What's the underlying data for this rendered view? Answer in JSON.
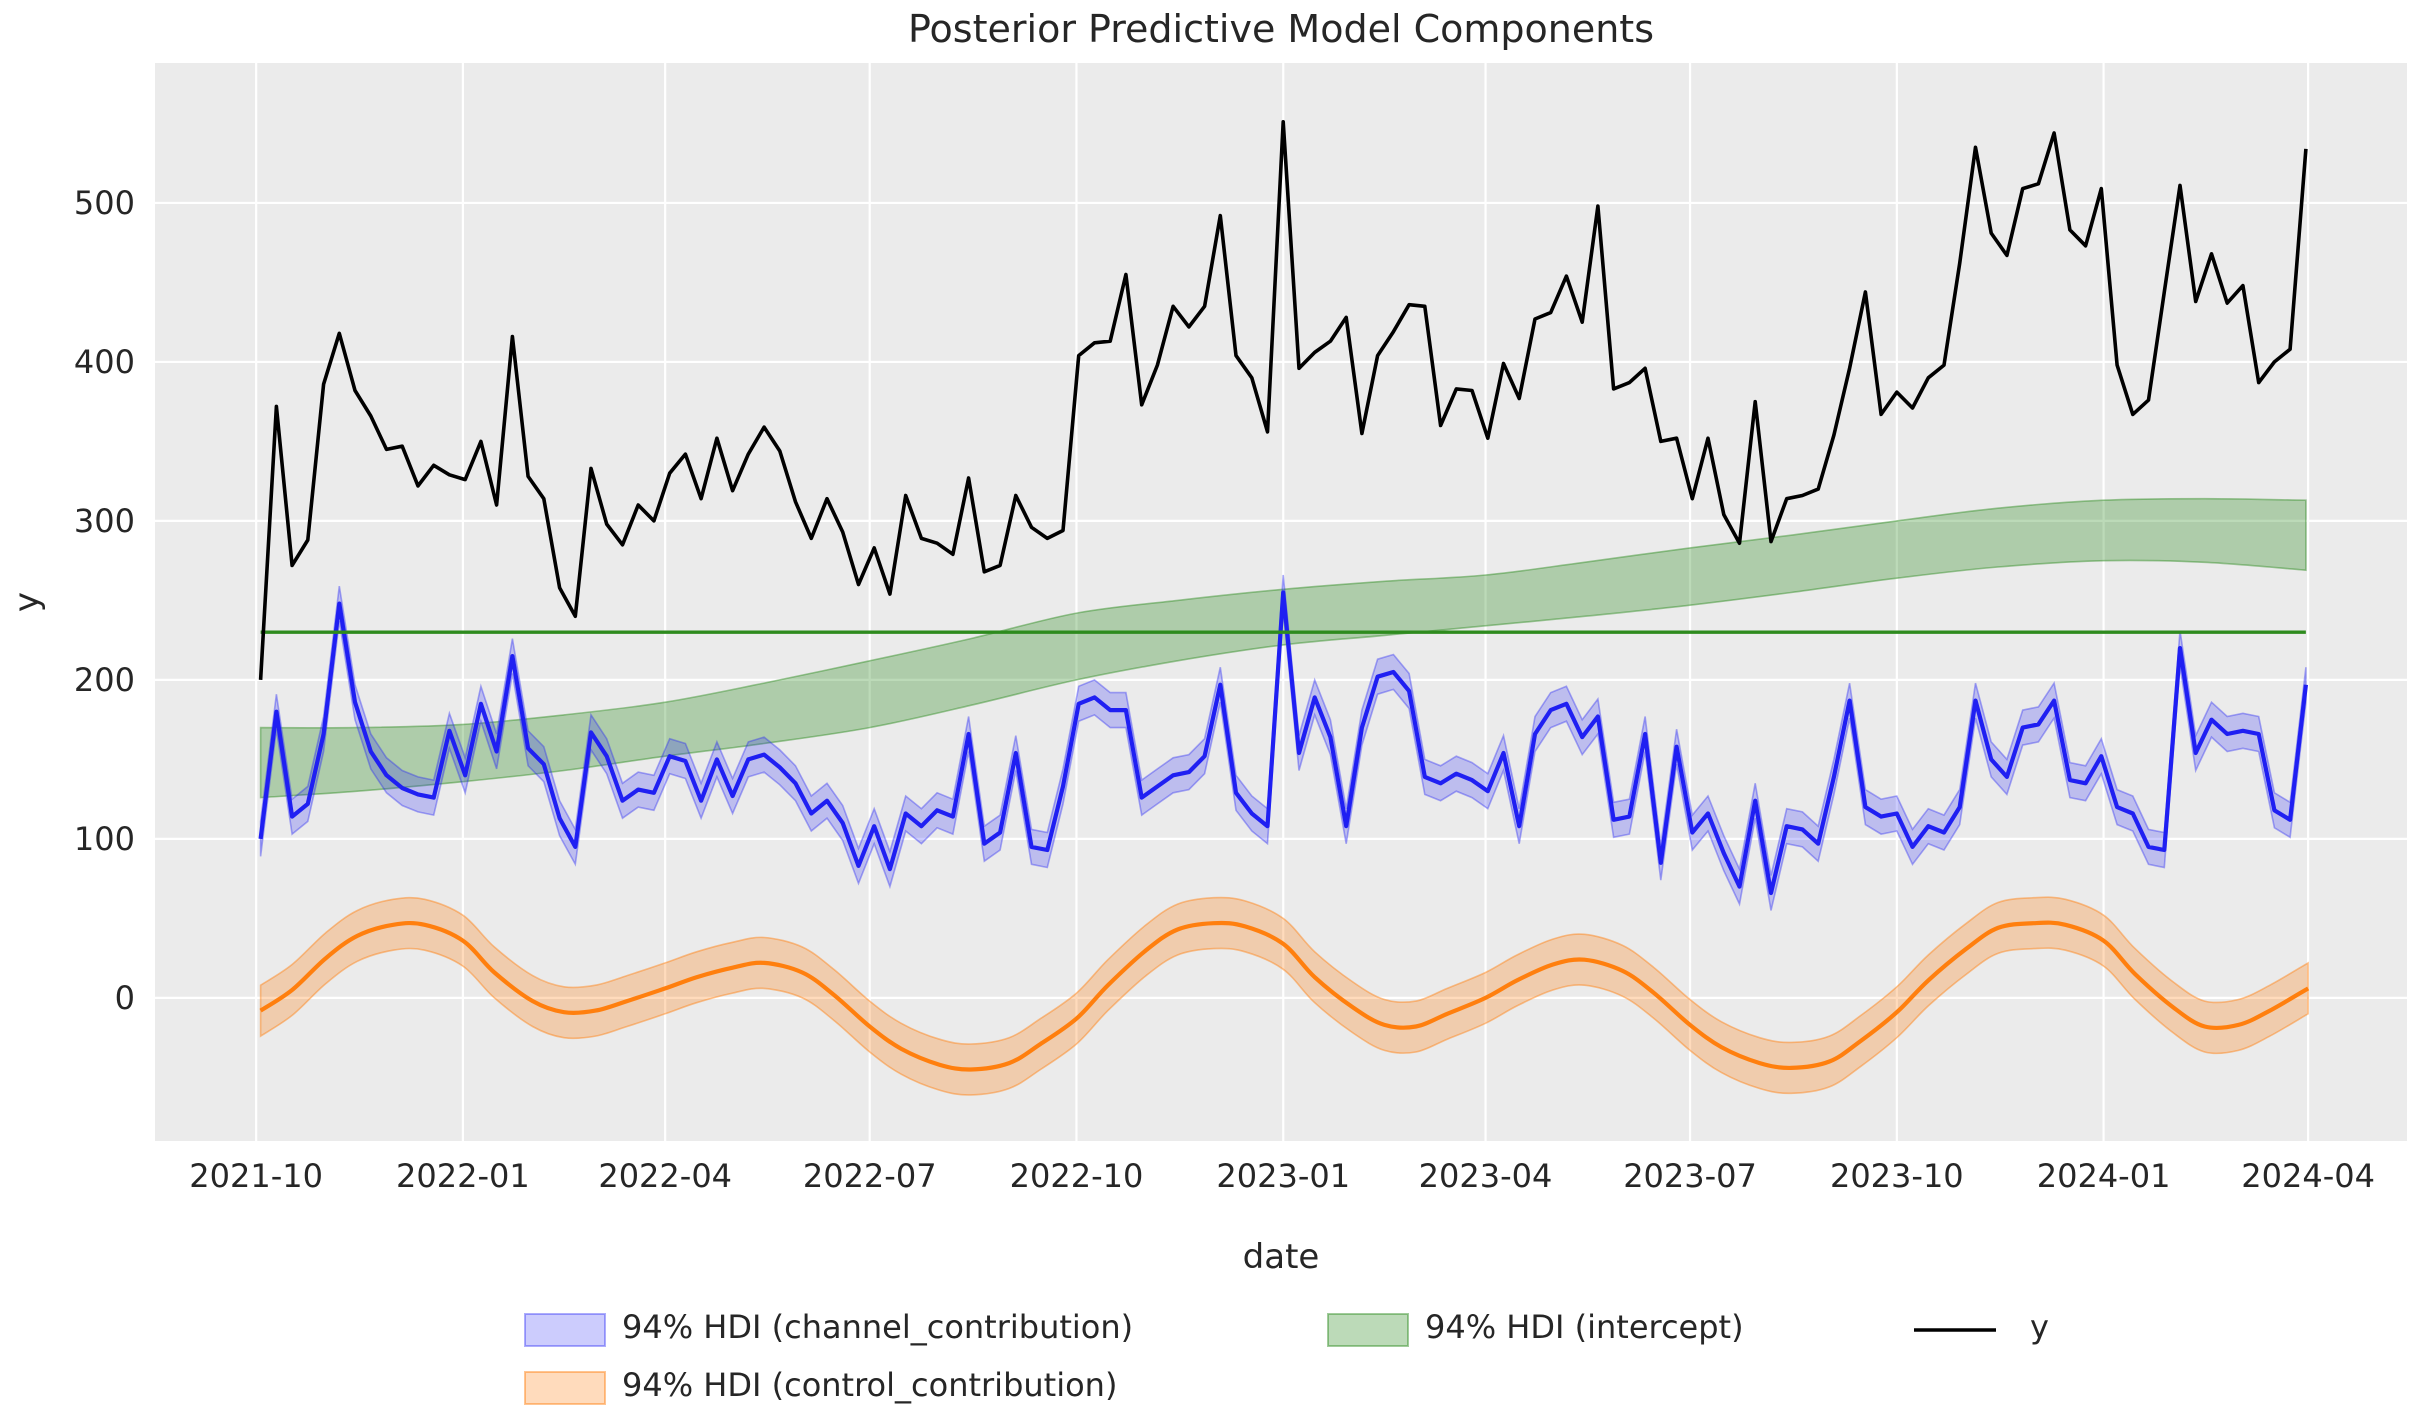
{
  "chart_data": {
    "type": "line",
    "title": "Posterior Predictive Model Components",
    "xlabel": "date",
    "ylabel": "y",
    "plot_bg": "#EBEBEB",
    "grid_color": "#FFFFFF",
    "text_color": "#262626",
    "ylim": [
      -90,
      588
    ],
    "y_ticks": [
      0,
      100,
      200,
      300,
      400,
      500
    ],
    "x_ticks": [
      {
        "date": "2021-10-01",
        "label": "2021-10"
      },
      {
        "date": "2022-01-01",
        "label": "2022-01"
      },
      {
        "date": "2022-04-01",
        "label": "2022-04"
      },
      {
        "date": "2022-07-01",
        "label": "2022-07"
      },
      {
        "date": "2022-10-01",
        "label": "2022-10"
      },
      {
        "date": "2023-01-01",
        "label": "2023-01"
      },
      {
        "date": "2023-04-01",
        "label": "2023-04"
      },
      {
        "date": "2023-07-01",
        "label": "2023-07"
      },
      {
        "date": "2023-10-01",
        "label": "2023-10"
      },
      {
        "date": "2024-01-01",
        "label": "2024-01"
      },
      {
        "date": "2024-04-01",
        "label": "2024-04"
      }
    ],
    "xlim_dates": [
      "2021-08-17",
      "2024-05-15"
    ],
    "x_start_date": "2021-10-03",
    "x_freq_days": 7,
    "series": [
      {
        "name": "y",
        "color": "#000000",
        "line_width": 3.6,
        "values": [
          200,
          372,
          272,
          288,
          386,
          418,
          382,
          366,
          345,
          347,
          322,
          335,
          329,
          326,
          350,
          310,
          416,
          328,
          314,
          258,
          240,
          333,
          298,
          285,
          310,
          300,
          330,
          342,
          314,
          352,
          319,
          342,
          359,
          344,
          312,
          289,
          314,
          293,
          260,
          283,
          254,
          316,
          289,
          286,
          279,
          327,
          268,
          272,
          316,
          296,
          289,
          294,
          404,
          412,
          413,
          455,
          373,
          398,
          435,
          422,
          435,
          492,
          404,
          390,
          356,
          551,
          396,
          406,
          413,
          428,
          355,
          404,
          419,
          436,
          435,
          360,
          383,
          382,
          352,
          399,
          377,
          427,
          431,
          454,
          425,
          498,
          383,
          387,
          396,
          350,
          352,
          314,
          352,
          304,
          286,
          375,
          287,
          314,
          316,
          320,
          354,
          396,
          444,
          367,
          381,
          371,
          390,
          398,
          462,
          535,
          481,
          467,
          509,
          512,
          544,
          483,
          473,
          509,
          398,
          367,
          376,
          444,
          511,
          438,
          468,
          437,
          448,
          387,
          400,
          408,
          534
        ]
      },
      {
        "name": "channel_contribution_mean",
        "color": "#1F1FF2",
        "line_width": 4.2,
        "hdi_half_width": 11,
        "band_fill": "rgba(40,40,245,0.24)",
        "band_edge": "rgba(40,40,245,0.38)",
        "values": [
          100,
          180,
          114,
          122,
          166,
          248,
          186,
          155,
          140,
          132,
          128,
          126,
          168,
          140,
          185,
          155,
          215,
          157,
          147,
          113,
          95,
          167,
          152,
          124,
          131,
          129,
          152,
          149,
          124,
          150,
          127,
          150,
          153,
          145,
          135,
          116,
          124,
          110,
          83,
          108,
          81,
          116,
          108,
          118,
          114,
          166,
          97,
          104,
          154,
          95,
          93,
          133,
          185,
          189,
          181,
          181,
          126,
          133,
          140,
          142,
          152,
          197,
          129,
          116,
          108,
          255,
          154,
          189,
          164,
          108,
          170,
          202,
          205,
          193,
          139,
          135,
          141,
          137,
          130,
          154,
          108,
          166,
          181,
          185,
          164,
          177,
          112,
          114,
          166,
          85,
          158,
          104,
          116,
          91,
          70,
          124,
          66,
          108,
          106,
          97,
          139,
          187,
          120,
          114,
          116,
          95,
          108,
          104,
          120,
          187,
          150,
          139,
          170,
          172,
          187,
          137,
          135,
          152,
          120,
          116,
          95,
          93,
          220,
          154,
          175,
          166,
          168,
          166,
          118,
          112,
          197
        ]
      }
    ],
    "intercept_line": {
      "name": "intercept_mean",
      "value": 230,
      "color": "#2E8B1E",
      "line_width": 3.4
    },
    "intercept_band": {
      "name": "94% HDI (intercept)",
      "band_fill": "rgba(46,139,34,0.32)",
      "band_edge": "rgba(46,139,34,0.45)",
      "keypoints": [
        {
          "date": "2021-10-03",
          "lo": 126,
          "hi": 170
        },
        {
          "date": "2021-11-15",
          "lo": 130,
          "hi": 170
        },
        {
          "date": "2022-01-01",
          "lo": 136,
          "hi": 172
        },
        {
          "date": "2022-02-15",
          "lo": 143,
          "hi": 178
        },
        {
          "date": "2022-04-01",
          "lo": 152,
          "hi": 186
        },
        {
          "date": "2022-05-15",
          "lo": 160,
          "hi": 198
        },
        {
          "date": "2022-07-01",
          "lo": 170,
          "hi": 212
        },
        {
          "date": "2022-08-15",
          "lo": 184,
          "hi": 226
        },
        {
          "date": "2022-10-01",
          "lo": 200,
          "hi": 242
        },
        {
          "date": "2022-11-15",
          "lo": 212,
          "hi": 250
        },
        {
          "date": "2023-01-01",
          "lo": 222,
          "hi": 257
        },
        {
          "date": "2023-02-15",
          "lo": 228,
          "hi": 262
        },
        {
          "date": "2023-04-01",
          "lo": 234,
          "hi": 266
        },
        {
          "date": "2023-05-15",
          "lo": 240,
          "hi": 274
        },
        {
          "date": "2023-07-01",
          "lo": 247,
          "hi": 283
        },
        {
          "date": "2023-08-15",
          "lo": 255,
          "hi": 291
        },
        {
          "date": "2023-10-01",
          "lo": 264,
          "hi": 300
        },
        {
          "date": "2023-11-15",
          "lo": 271,
          "hi": 308
        },
        {
          "date": "2024-01-01",
          "lo": 275,
          "hi": 313
        },
        {
          "date": "2024-02-15",
          "lo": 274,
          "hi": 314
        },
        {
          "date": "2024-03-31",
          "lo": 269,
          "hi": 313
        }
      ]
    },
    "control_band": {
      "name": "94% HDI (control_contribution)",
      "color": "#FF7F0E",
      "line_width": 4.2,
      "hdi_half_width": 16,
      "band_fill": "rgba(255,127,14,0.28)",
      "band_edge": "rgba(255,127,14,0.45)",
      "keypoints": [
        {
          "date": "2021-10-03",
          "mid": -8
        },
        {
          "date": "2021-10-17",
          "mid": 5
        },
        {
          "date": "2021-11-01",
          "mid": 25
        },
        {
          "date": "2021-11-15",
          "mid": 39
        },
        {
          "date": "2021-12-01",
          "mid": 46
        },
        {
          "date": "2021-12-15",
          "mid": 46
        },
        {
          "date": "2022-01-01",
          "mid": 36
        },
        {
          "date": "2022-01-15",
          "mid": 16
        },
        {
          "date": "2022-02-01",
          "mid": -2
        },
        {
          "date": "2022-02-15",
          "mid": -9
        },
        {
          "date": "2022-03-01",
          "mid": -8
        },
        {
          "date": "2022-03-15",
          "mid": -2
        },
        {
          "date": "2022-04-01",
          "mid": 6
        },
        {
          "date": "2022-04-15",
          "mid": 13
        },
        {
          "date": "2022-05-01",
          "mid": 19
        },
        {
          "date": "2022-05-15",
          "mid": 22
        },
        {
          "date": "2022-06-01",
          "mid": 16
        },
        {
          "date": "2022-06-15",
          "mid": 2
        },
        {
          "date": "2022-07-01",
          "mid": -18
        },
        {
          "date": "2022-07-15",
          "mid": -32
        },
        {
          "date": "2022-08-01",
          "mid": -42
        },
        {
          "date": "2022-08-15",
          "mid": -45
        },
        {
          "date": "2022-09-01",
          "mid": -41
        },
        {
          "date": "2022-09-15",
          "mid": -29
        },
        {
          "date": "2022-10-01",
          "mid": -13
        },
        {
          "date": "2022-10-15",
          "mid": 8
        },
        {
          "date": "2022-11-01",
          "mid": 30
        },
        {
          "date": "2022-11-15",
          "mid": 43
        },
        {
          "date": "2022-12-01",
          "mid": 47
        },
        {
          "date": "2022-12-15",
          "mid": 45
        },
        {
          "date": "2023-01-01",
          "mid": 34
        },
        {
          "date": "2023-01-15",
          "mid": 13
        },
        {
          "date": "2023-02-01",
          "mid": -6
        },
        {
          "date": "2023-02-15",
          "mid": -17
        },
        {
          "date": "2023-03-01",
          "mid": -18
        },
        {
          "date": "2023-03-15",
          "mid": -10
        },
        {
          "date": "2023-04-01",
          "mid": 0
        },
        {
          "date": "2023-04-15",
          "mid": 11
        },
        {
          "date": "2023-05-01",
          "mid": 21
        },
        {
          "date": "2023-05-15",
          "mid": 24
        },
        {
          "date": "2023-06-01",
          "mid": 17
        },
        {
          "date": "2023-06-15",
          "mid": 3
        },
        {
          "date": "2023-07-01",
          "mid": -17
        },
        {
          "date": "2023-07-15",
          "mid": -31
        },
        {
          "date": "2023-08-01",
          "mid": -41
        },
        {
          "date": "2023-08-15",
          "mid": -44
        },
        {
          "date": "2023-09-01",
          "mid": -40
        },
        {
          "date": "2023-09-15",
          "mid": -27
        },
        {
          "date": "2023-10-01",
          "mid": -9
        },
        {
          "date": "2023-10-15",
          "mid": 11
        },
        {
          "date": "2023-11-01",
          "mid": 31
        },
        {
          "date": "2023-11-15",
          "mid": 44
        },
        {
          "date": "2023-12-01",
          "mid": 47
        },
        {
          "date": "2023-12-15",
          "mid": 46
        },
        {
          "date": "2024-01-01",
          "mid": 36
        },
        {
          "date": "2024-01-15",
          "mid": 15
        },
        {
          "date": "2024-02-01",
          "mid": -6
        },
        {
          "date": "2024-02-15",
          "mid": -18
        },
        {
          "date": "2024-03-01",
          "mid": -17
        },
        {
          "date": "2024-03-15",
          "mid": -8
        },
        {
          "date": "2024-04-01",
          "mid": 6
        }
      ]
    },
    "legend": {
      "entries": [
        {
          "label": "94% HDI (channel_contribution)",
          "swatch": "patch",
          "ref": "channel"
        },
        {
          "label": "94% HDI (control_contribution)",
          "swatch": "patch",
          "ref": "control"
        },
        {
          "label": "94% HDI (intercept)",
          "swatch": "patch",
          "ref": "intercept"
        },
        {
          "label": "y",
          "swatch": "line",
          "ref": "y"
        }
      ]
    }
  }
}
